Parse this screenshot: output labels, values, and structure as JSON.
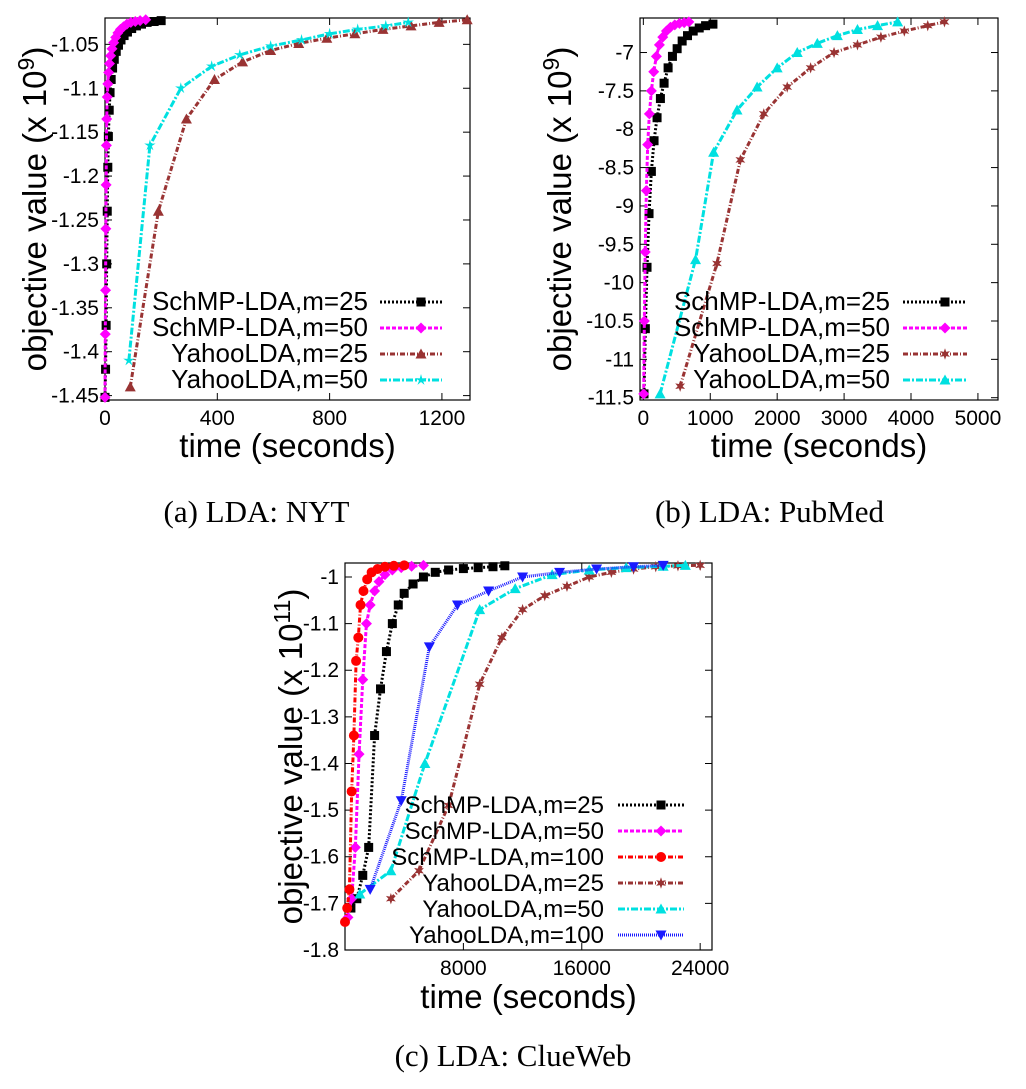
{
  "chart_data": [
    {
      "type": "line",
      "caption": "(a) LDA: NYT",
      "xlabel": "time (seconds)",
      "ylabel": "objective value (x 10",
      "ylabel_exp": "9",
      "xlim": [
        0,
        1300
      ],
      "ylim": [
        -1.455,
        -1.02
      ],
      "xticks": [
        0,
        400,
        800,
        1200
      ],
      "yticks": [
        -1.05,
        -1.1,
        -1.15,
        -1.2,
        -1.25,
        -1.3,
        -1.35,
        -1.4,
        -1.45
      ],
      "grid": false,
      "legend_position": "bottom-right",
      "series": [
        {
          "name": "SchMP-LDA,m=25",
          "color": "#000000",
          "marker": "square",
          "dash": "2 2",
          "x": [
            0,
            2,
            4,
            6,
            8,
            10,
            12,
            15,
            18,
            22,
            27,
            33,
            40,
            48,
            57,
            68,
            80,
            95,
            112,
            130,
            150,
            175,
            200
          ],
          "y": [
            -1.452,
            -1.42,
            -1.37,
            -1.3,
            -1.24,
            -1.19,
            -1.155,
            -1.125,
            -1.105,
            -1.09,
            -1.077,
            -1.067,
            -1.058,
            -1.051,
            -1.045,
            -1.04,
            -1.036,
            -1.032,
            -1.029,
            -1.027,
            -1.025,
            -1.024,
            -1.023
          ]
        },
        {
          "name": "SchMP-LDA,m=50",
          "color": "#ff00ff",
          "marker": "diamond",
          "dash": "4 2",
          "x": [
            0,
            1,
            2,
            3,
            4,
            5,
            6,
            8,
            10,
            13,
            16,
            20,
            25,
            31,
            38,
            46,
            55,
            66,
            78,
            92,
            108,
            125,
            145
          ],
          "y": [
            -1.452,
            -1.38,
            -1.33,
            -1.26,
            -1.21,
            -1.165,
            -1.135,
            -1.11,
            -1.095,
            -1.082,
            -1.072,
            -1.063,
            -1.055,
            -1.048,
            -1.042,
            -1.037,
            -1.033,
            -1.03,
            -1.027,
            -1.025,
            -1.024,
            -1.023,
            -1.022
          ]
        },
        {
          "name": "YahooLDA,m=25",
          "color": "#993333",
          "marker": "triangle",
          "dash": "5 2 1 2",
          "x": [
            90,
            190,
            290,
            390,
            490,
            590,
            690,
            790,
            890,
            990,
            1090,
            1190,
            1290
          ],
          "y": [
            -1.44,
            -1.24,
            -1.135,
            -1.09,
            -1.07,
            -1.057,
            -1.049,
            -1.043,
            -1.038,
            -1.033,
            -1.029,
            -1.025,
            -1.022
          ]
        },
        {
          "name": "YahooLDA,m=50",
          "color": "#00e0e0",
          "marker": "star",
          "dash": "7 2 2 2",
          "x": [
            85,
            160,
            270,
            380,
            480,
            590,
            700,
            800,
            900,
            1000,
            1080
          ],
          "y": [
            -1.41,
            -1.165,
            -1.1,
            -1.075,
            -1.062,
            -1.052,
            -1.045,
            -1.038,
            -1.033,
            -1.029,
            -1.025
          ]
        }
      ]
    },
    {
      "type": "line",
      "caption": "(b) LDA: PubMed",
      "xlabel": "time (seconds)",
      "ylabel": "objective value (x 10",
      "ylabel_exp": "9",
      "xlim": [
        -50,
        5300
      ],
      "ylim": [
        -11.53,
        -6.55
      ],
      "xticks": [
        0,
        1000,
        2000,
        3000,
        4000,
        5000
      ],
      "yticks": [
        -7,
        -7.5,
        -8,
        -8.5,
        -9,
        -9.5,
        -10,
        -10.5,
        -11,
        -11.5
      ],
      "grid": false,
      "legend_position": "bottom-right",
      "series": [
        {
          "name": "SchMP-LDA,m=25",
          "color": "#000000",
          "marker": "square",
          "dash": "2 2",
          "x": [
            10,
            30,
            55,
            85,
            120,
            160,
            205,
            255,
            310,
            370,
            435,
            505,
            580,
            660,
            745,
            835,
            930,
            1040
          ],
          "y": [
            -11.45,
            -10.6,
            -9.8,
            -9.1,
            -8.55,
            -8.15,
            -7.85,
            -7.6,
            -7.4,
            -7.2,
            -7.05,
            -6.95,
            -6.85,
            -6.78,
            -6.72,
            -6.68,
            -6.65,
            -6.63
          ]
        },
        {
          "name": "SchMP-LDA,m=50",
          "color": "#ff00ff",
          "marker": "diamond",
          "dash": "4 2",
          "x": [
            5,
            15,
            28,
            45,
            65,
            90,
            120,
            155,
            195,
            240,
            290,
            345,
            405,
            470,
            540,
            610,
            680
          ],
          "y": [
            -11.45,
            -10.5,
            -9.6,
            -8.8,
            -8.2,
            -7.8,
            -7.5,
            -7.25,
            -7.05,
            -6.9,
            -6.8,
            -6.72,
            -6.67,
            -6.64,
            -6.62,
            -6.61,
            -6.6
          ]
        },
        {
          "name": "YahooLDA,m=25",
          "color": "#993333",
          "marker": "star6",
          "dash": "5 2 1 2",
          "x": [
            550,
            1100,
            1450,
            1800,
            2150,
            2500,
            2850,
            3200,
            3550,
            3900,
            4250,
            4500
          ],
          "y": [
            -11.35,
            -9.75,
            -8.4,
            -7.8,
            -7.45,
            -7.2,
            -7.0,
            -6.9,
            -6.8,
            -6.72,
            -6.65,
            -6.6
          ]
        },
        {
          "name": "YahooLDA,m=50",
          "color": "#00e0e0",
          "marker": "triangle",
          "dash": "7 2 2 2",
          "x": [
            250,
            780,
            1050,
            1400,
            1700,
            2000,
            2300,
            2600,
            2900,
            3200,
            3500,
            3800
          ],
          "y": [
            -11.45,
            -9.7,
            -8.3,
            -7.75,
            -7.45,
            -7.2,
            -7.0,
            -6.88,
            -6.78,
            -6.7,
            -6.65,
            -6.6
          ]
        }
      ]
    },
    {
      "type": "line",
      "caption": "(c) LDA: ClueWeb",
      "xlabel": "time (seconds)",
      "ylabel": "objective value (x 10",
      "ylabel_exp": "11",
      "xlim": [
        0,
        24800
      ],
      "ylim": [
        -1.8,
        -0.97
      ],
      "xticks": [
        8000,
        16000,
        24000
      ],
      "yticks": [
        -1,
        -1.1,
        -1.2,
        -1.3,
        -1.4,
        -1.5,
        -1.6,
        -1.7,
        -1.8
      ],
      "grid": false,
      "legend_position": "bottom-right",
      "series": [
        {
          "name": "SchMP-LDA,m=25",
          "color": "#000000",
          "marker": "square",
          "dash": "2 2",
          "x": [
            400,
            800,
            1200,
            1600,
            2000,
            2400,
            2800,
            3200,
            3600,
            4000,
            4600,
            5300,
            6100,
            7000,
            8000,
            9000,
            10000,
            10800
          ],
          "y": [
            -1.71,
            -1.69,
            -1.64,
            -1.58,
            -1.34,
            -1.24,
            -1.16,
            -1.1,
            -1.06,
            -1.035,
            -1.015,
            -1.0,
            -0.99,
            -0.985,
            -0.982,
            -0.98,
            -0.978,
            -0.976
          ]
        },
        {
          "name": "SchMP-LDA,m=50",
          "color": "#ff00ff",
          "marker": "diamond",
          "dash": "4 2",
          "x": [
            200,
            450,
            700,
            950,
            1200,
            1450,
            1700,
            2000,
            2300,
            2700,
            3200,
            3800,
            4500,
            5300
          ],
          "y": [
            -1.73,
            -1.69,
            -1.58,
            -1.38,
            -1.22,
            -1.1,
            -1.06,
            -1.03,
            -1.01,
            -0.995,
            -0.985,
            -0.98,
            -0.977,
            -0.975
          ]
        },
        {
          "name": "SchMP-LDA,m=100",
          "color": "#ff0000",
          "marker": "circle",
          "dash": "5 2 1 2",
          "x": [
            0,
            150,
            300,
            450,
            600,
            750,
            900,
            1050,
            1250,
            1500,
            1800,
            2200,
            2700,
            3300,
            4000
          ],
          "y": [
            -1.74,
            -1.71,
            -1.67,
            -1.46,
            -1.34,
            -1.18,
            -1.13,
            -1.06,
            -1.03,
            -1.005,
            -0.99,
            -0.983,
            -0.978,
            -0.976,
            -0.975
          ]
        },
        {
          "name": "YahooLDA,m=25",
          "color": "#993333",
          "marker": "star6",
          "dash": "5 2 1 2",
          "x": [
            3100,
            5000,
            7000,
            9100,
            10600,
            12000,
            13500,
            15000,
            16500,
            18000,
            19500,
            21000,
            22500,
            24000
          ],
          "y": [
            -1.69,
            -1.63,
            -1.49,
            -1.23,
            -1.13,
            -1.07,
            -1.04,
            -1.02,
            -1.0,
            -0.99,
            -0.983,
            -0.978,
            -0.976,
            -0.975
          ]
        },
        {
          "name": "YahooLDA,m=50",
          "color": "#00e0e0",
          "marker": "triangle",
          "dash": "7 2 2 2",
          "x": [
            1000,
            3100,
            5400,
            9100,
            11500,
            14000,
            16500,
            19000,
            21500,
            23000
          ],
          "y": [
            -1.68,
            -1.63,
            -1.4,
            -1.07,
            -1.025,
            -0.995,
            -0.985,
            -0.98,
            -0.977,
            -0.975
          ]
        },
        {
          "name": "YahooLDA,m=100",
          "color": "#1a1aff",
          "marker": "triangle-down",
          "dash": "1 1",
          "x": [
            1700,
            3800,
            5700,
            7600,
            9700,
            12000,
            14500,
            17000,
            19500,
            21500
          ],
          "y": [
            -1.67,
            -1.48,
            -1.15,
            -1.06,
            -1.03,
            -1.0,
            -0.99,
            -0.983,
            -0.978,
            -0.975
          ]
        }
      ]
    }
  ]
}
